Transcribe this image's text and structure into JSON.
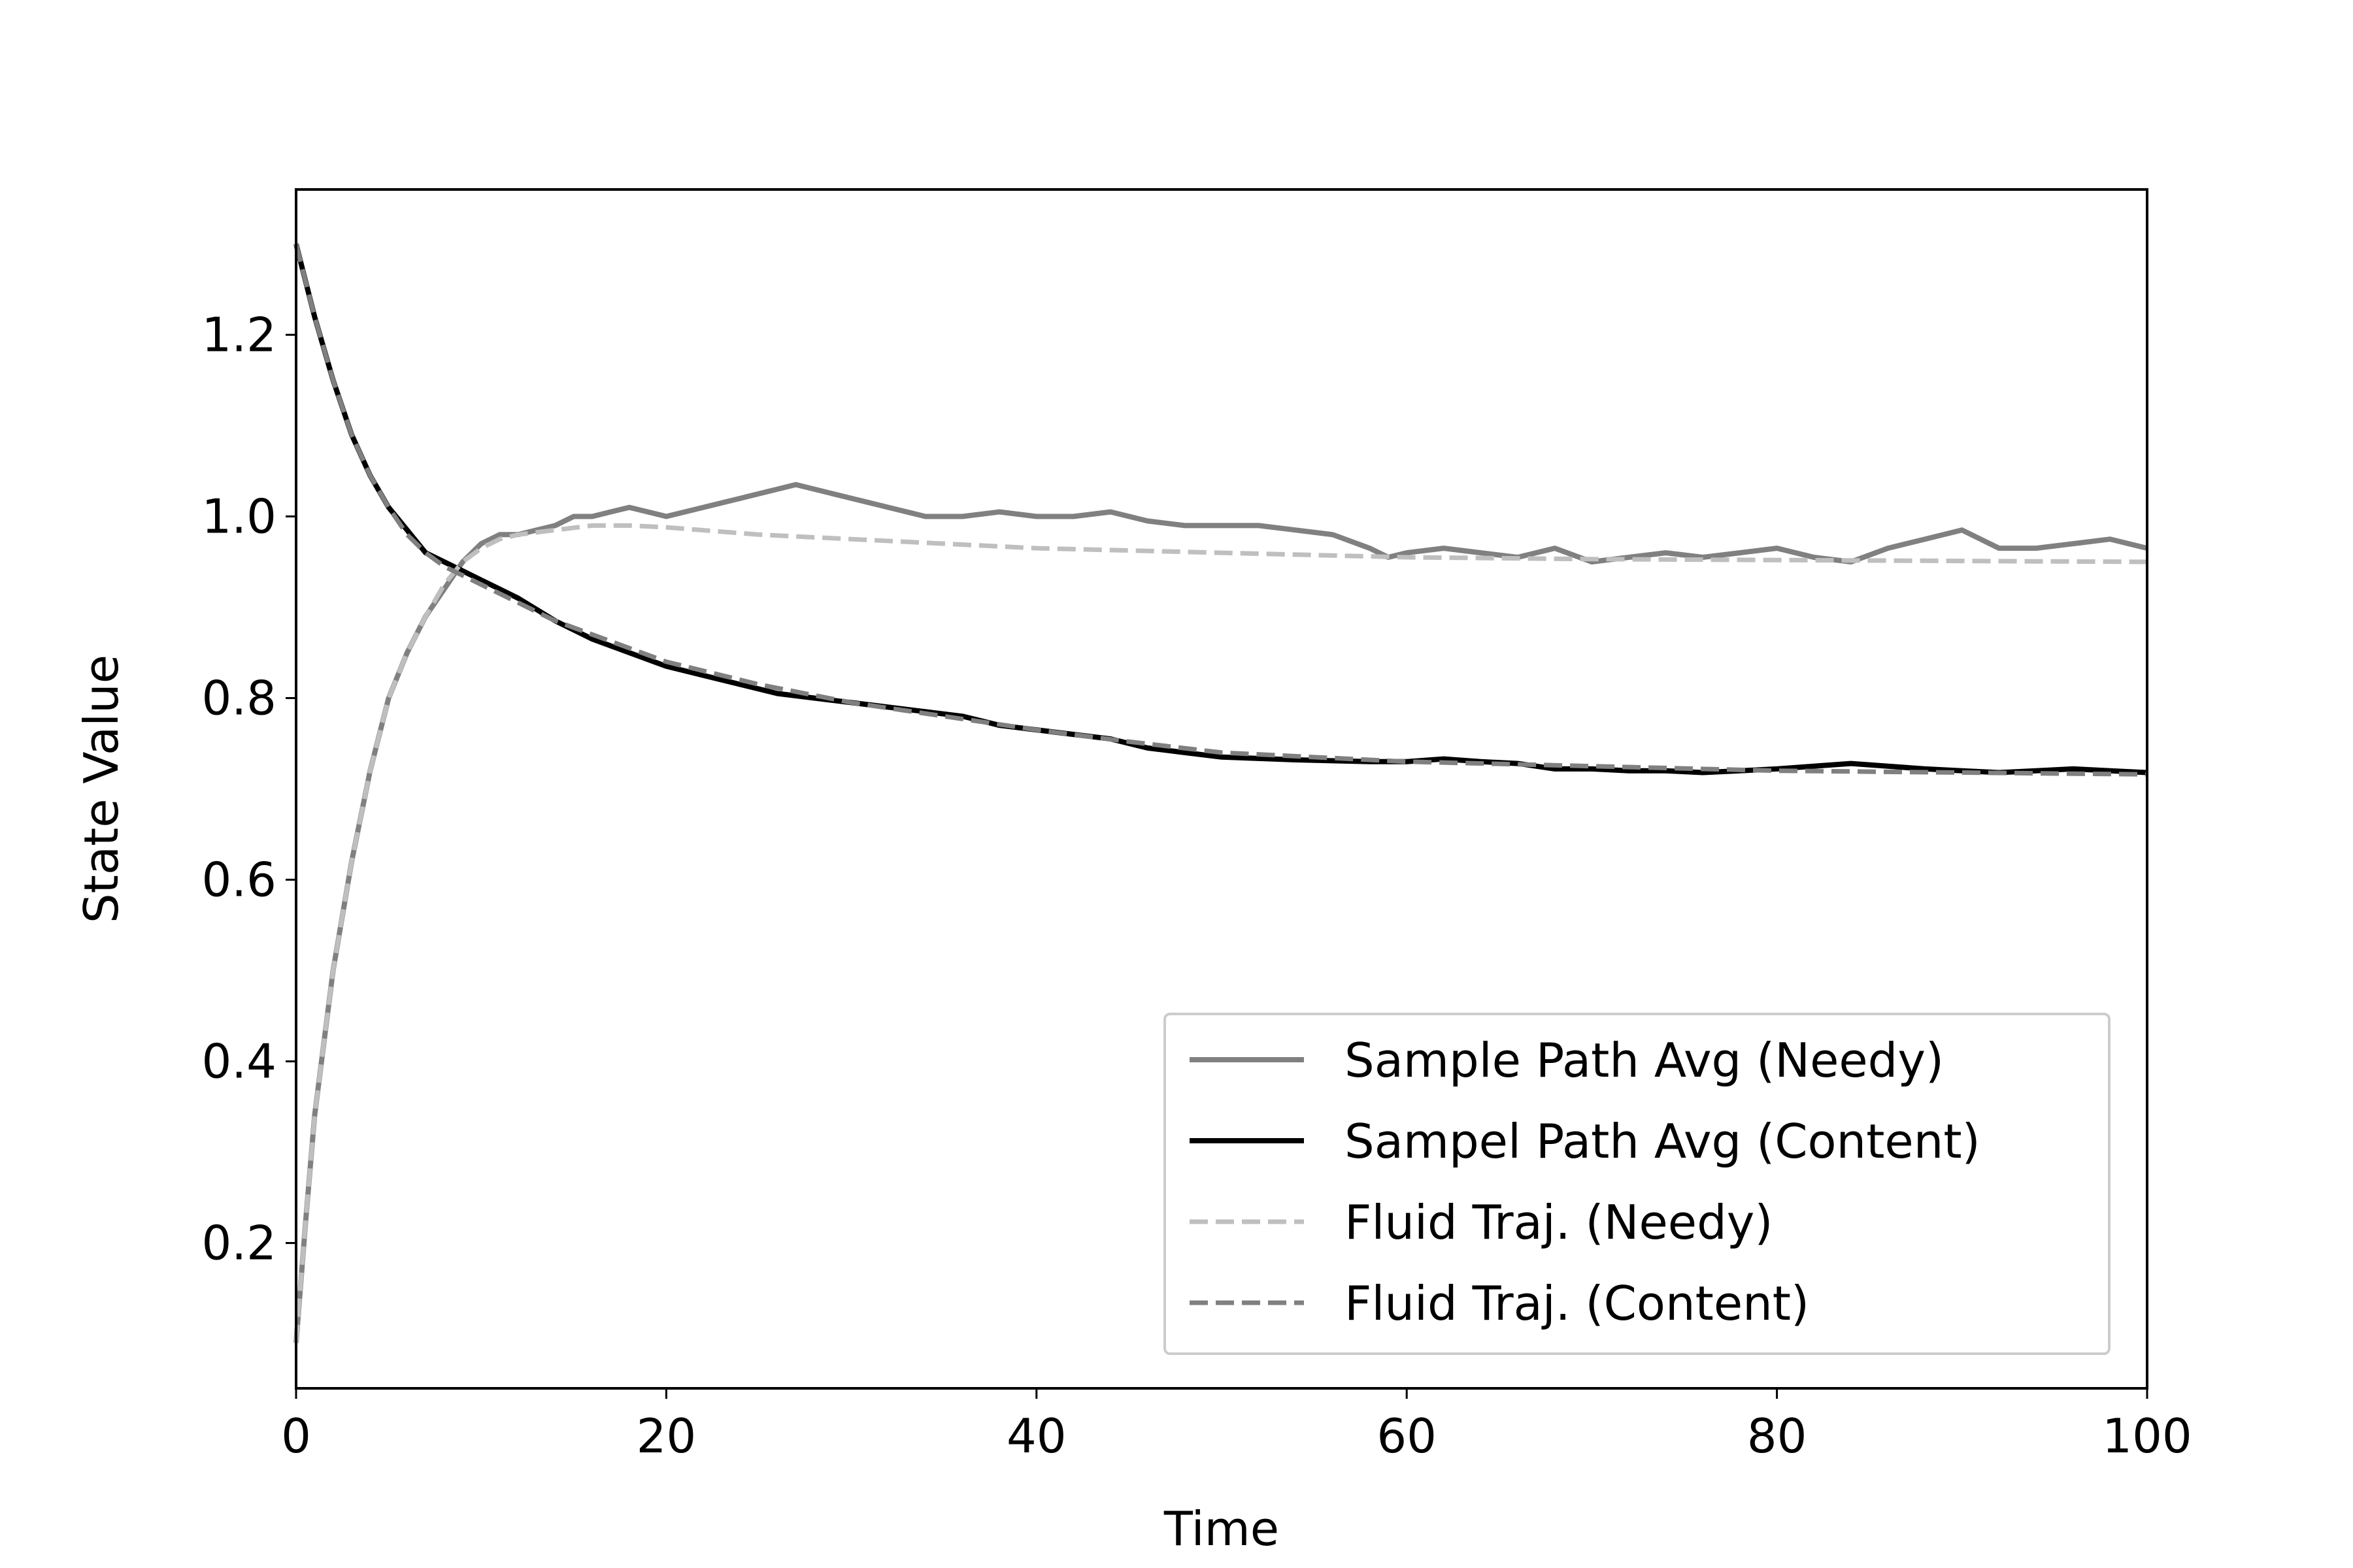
{
  "chart_data": {
    "type": "line",
    "title": "",
    "xlabel": "Time",
    "ylabel": "State Value",
    "xlim": [
      0,
      100
    ],
    "ylim": [
      0.04,
      1.36
    ],
    "xticks": [
      "0",
      "20",
      "40",
      "60",
      "80",
      "100"
    ],
    "yticks": [
      "0.2",
      "0.4",
      "0.6",
      "0.8",
      "1.0",
      "1.2"
    ],
    "grid": false,
    "legend_position": "lower right",
    "series": [
      {
        "name": "Sample Path Avg (Needy)",
        "color": "#808080",
        "style": "solid",
        "x": [
          0,
          0.5,
          1,
          2,
          3,
          4,
          5,
          6,
          7,
          8,
          9,
          10,
          11,
          12,
          13,
          14,
          15,
          16,
          17,
          18,
          19,
          20,
          22,
          24,
          26,
          27,
          28,
          30,
          32,
          34,
          36,
          38,
          40,
          42,
          44,
          46,
          48,
          50,
          52,
          54,
          56,
          58,
          59,
          60,
          62,
          64,
          66,
          68,
          70,
          72,
          74,
          76,
          78,
          80,
          82,
          84,
          86,
          88,
          90,
          91,
          92,
          94,
          96,
          98,
          100
        ],
        "y": [
          0.09,
          0.22,
          0.34,
          0.5,
          0.62,
          0.72,
          0.8,
          0.85,
          0.89,
          0.92,
          0.95,
          0.97,
          0.98,
          0.98,
          0.985,
          0.99,
          1.0,
          1.0,
          1.005,
          1.01,
          1.005,
          1.0,
          1.01,
          1.02,
          1.03,
          1.035,
          1.03,
          1.02,
          1.01,
          1.0,
          1.0,
          1.005,
          1.0,
          1.0,
          1.005,
          0.995,
          0.99,
          0.99,
          0.99,
          0.985,
          0.98,
          0.965,
          0.955,
          0.96,
          0.965,
          0.96,
          0.955,
          0.965,
          0.95,
          0.955,
          0.96,
          0.955,
          0.96,
          0.965,
          0.955,
          0.95,
          0.965,
          0.975,
          0.985,
          0.975,
          0.965,
          0.965,
          0.97,
          0.975,
          0.965
        ]
      },
      {
        "name": "Sampel Path Avg (Content)",
        "color": "#000000",
        "style": "solid",
        "x": [
          0,
          1,
          2,
          3,
          4,
          5,
          6,
          7,
          8,
          9,
          10,
          12,
          14,
          16,
          18,
          20,
          22,
          24,
          26,
          28,
          30,
          32,
          34,
          36,
          38,
          40,
          42,
          44,
          46,
          48,
          50,
          54,
          58,
          60,
          62,
          64,
          66,
          68,
          70,
          72,
          74,
          76,
          78,
          80,
          82,
          84,
          86,
          88,
          90,
          92,
          94,
          96,
          98,
          100
        ],
        "y": [
          1.3,
          1.22,
          1.15,
          1.09,
          1.045,
          1.01,
          0.985,
          0.96,
          0.95,
          0.94,
          0.93,
          0.91,
          0.885,
          0.865,
          0.85,
          0.835,
          0.825,
          0.815,
          0.805,
          0.8,
          0.795,
          0.79,
          0.785,
          0.78,
          0.77,
          0.765,
          0.76,
          0.755,
          0.745,
          0.74,
          0.735,
          0.732,
          0.73,
          0.73,
          0.733,
          0.73,
          0.728,
          0.722,
          0.722,
          0.72,
          0.72,
          0.718,
          0.72,
          0.722,
          0.725,
          0.728,
          0.725,
          0.722,
          0.72,
          0.718,
          0.72,
          0.722,
          0.72,
          0.718
        ]
      },
      {
        "name": "Fluid Traj. (Needy)",
        "color": "#bfbfbf",
        "style": "dashed",
        "x": [
          0,
          0.5,
          1,
          2,
          3,
          4,
          5,
          6,
          7,
          8,
          9,
          10,
          11,
          12,
          14,
          16,
          18,
          20,
          25,
          30,
          40,
          50,
          60,
          70,
          80,
          90,
          100
        ],
        "y": [
          0.09,
          0.22,
          0.34,
          0.5,
          0.62,
          0.72,
          0.8,
          0.85,
          0.89,
          0.925,
          0.95,
          0.965,
          0.975,
          0.98,
          0.985,
          0.99,
          0.99,
          0.988,
          0.98,
          0.975,
          0.965,
          0.96,
          0.955,
          0.953,
          0.952,
          0.951,
          0.95
        ]
      },
      {
        "name": "Fluid Traj. (Content)",
        "color": "#808080",
        "style": "dashed",
        "x": [
          0,
          1,
          2,
          3,
          4,
          5,
          6,
          7,
          8,
          10,
          12,
          14,
          16,
          18,
          20,
          25,
          30,
          35,
          40,
          45,
          50,
          60,
          70,
          80,
          90,
          100
        ],
        "y": [
          1.3,
          1.22,
          1.15,
          1.09,
          1.045,
          1.01,
          0.98,
          0.96,
          0.945,
          0.925,
          0.905,
          0.885,
          0.87,
          0.855,
          0.84,
          0.815,
          0.795,
          0.78,
          0.765,
          0.752,
          0.74,
          0.73,
          0.725,
          0.72,
          0.718,
          0.716
        ]
      }
    ]
  }
}
